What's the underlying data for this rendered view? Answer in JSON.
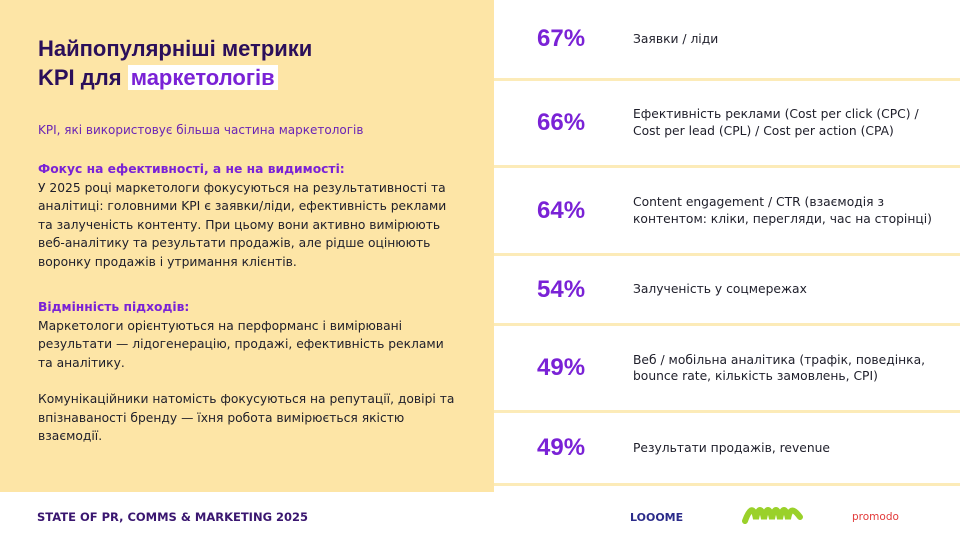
{
  "header": {
    "title_line1": "Найпопулярніші метрики",
    "title_line2": "KPI для",
    "title_highlight": "маркетологів",
    "subtitle": "KPI, які використовує більша частина маркетологів"
  },
  "sections": [
    {
      "heading": "Фокус на ефективності, а не на видимості:",
      "paragraphs": [
        "У 2025 році маркетологи фокусуються на результативності та аналітиці: головними KPI є заявки/ліди, ефективність реклами та залученість контенту. При цьому вони активно вимірюють веб-аналітику та результати продажів, але рідше оцінюють воронку продажів і утримання клієнтів."
      ]
    },
    {
      "heading": "Відмінність підходів:",
      "paragraphs": [
        "Маркетологи орієнтуються на перформанс і вимірювані результати — лідогенерацію, продажі, ефективність реклами та аналітику.",
        "Комунікаційники натомість фокусуються на репутації, довірі та впізнаваності бренду — їхня робота вимірюється якістю взаємодії."
      ]
    }
  ],
  "metrics": [
    {
      "value": "67%",
      "label": "Заявки / ліди"
    },
    {
      "value": "66%",
      "label": "Ефективність реклами (Cost per click (CPC) / Cost per lead (CPL) / Cost per action (CPA)"
    },
    {
      "value": "64%",
      "label": "Content engagement / CTR (взаємодія з контентом: кліки, перегляди, час на сторінці)"
    },
    {
      "value": "54%",
      "label": "Залученість у соцмережах"
    },
    {
      "value": "49%",
      "label": "Веб / мобільна аналітика (трафік, поведінка, bounce rate, кількість замовлень, CPI)"
    },
    {
      "value": "49%",
      "label": "Результати продажів, revenue"
    }
  ],
  "footer": {
    "text": "STATE OF PR, COMMS & MARKETING 2025",
    "logos": [
      "LOOOME",
      "promodo"
    ]
  }
}
